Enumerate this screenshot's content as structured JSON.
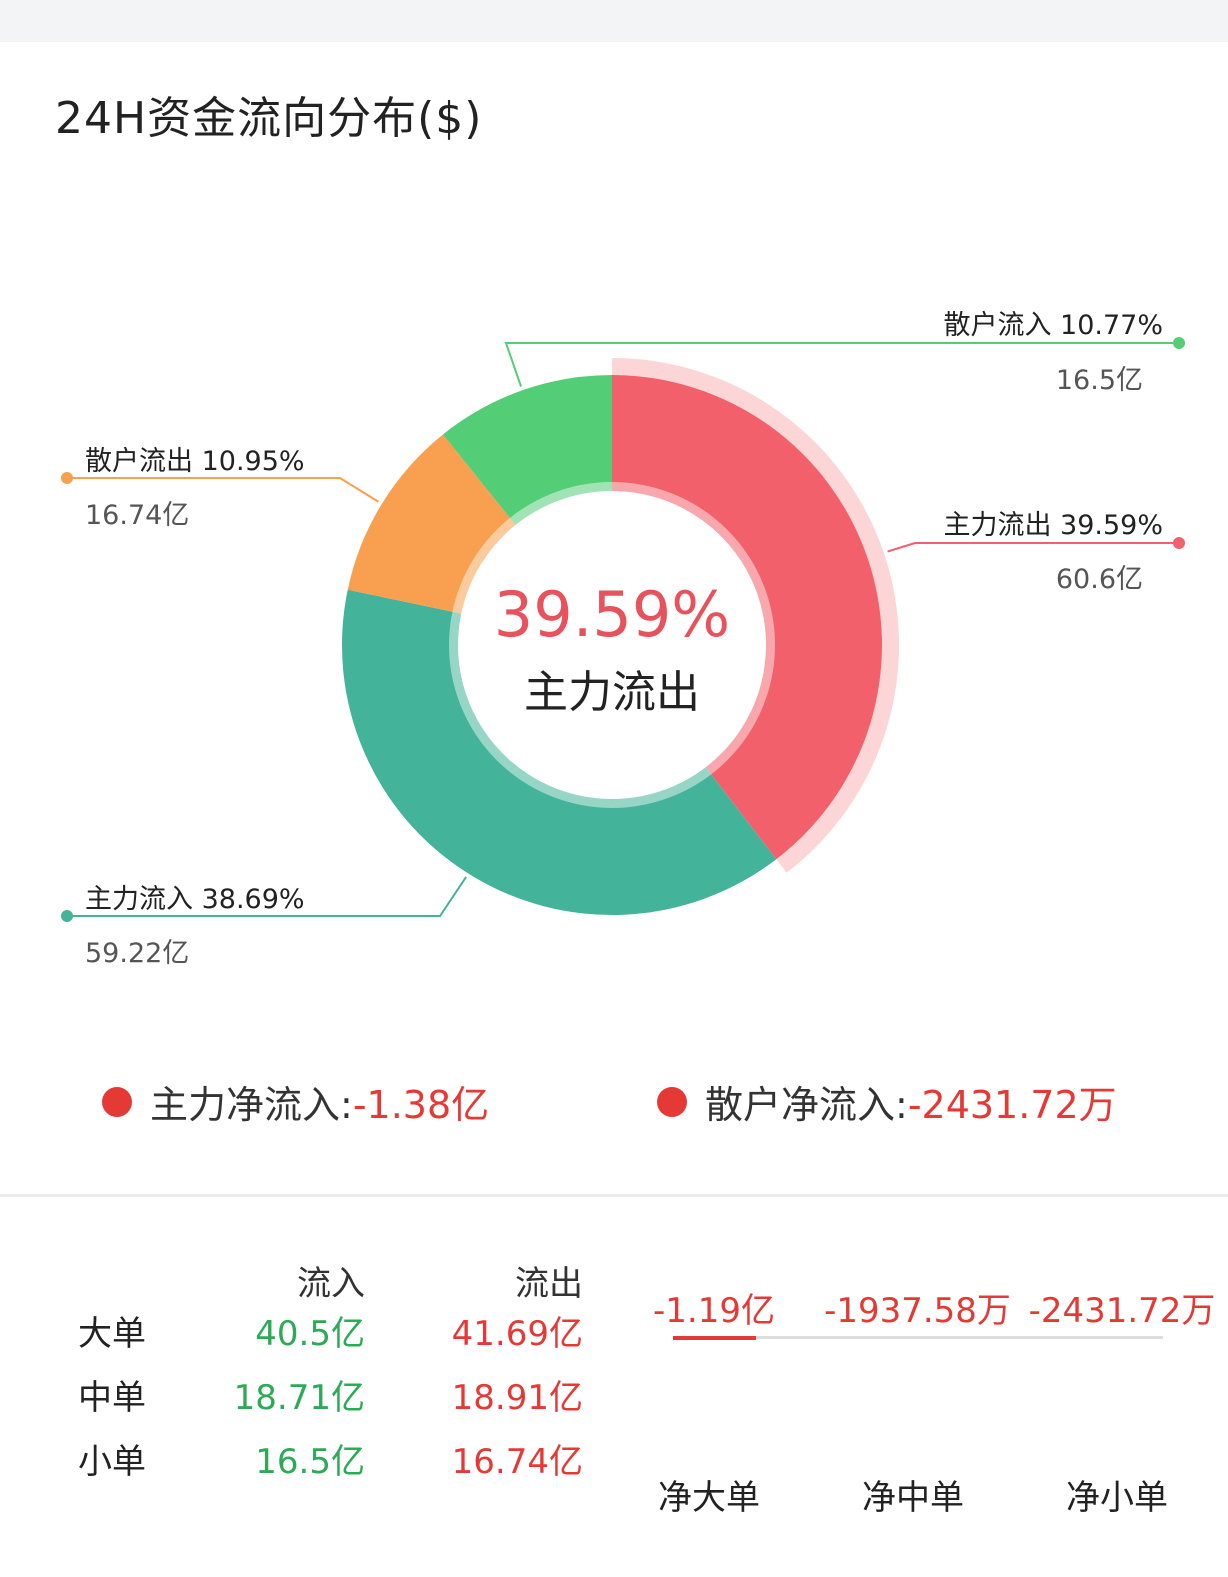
{
  "title": "24H资金流向分布($)",
  "chart_data": {
    "type": "pie",
    "title": "24H资金流向分布($)",
    "slices": [
      {
        "label": "主力流出",
        "percent": 39.59,
        "amount": "60.6亿",
        "percent_text": "主力流出 39.59%",
        "color": "#f2616b"
      },
      {
        "label": "主力流入",
        "percent": 38.69,
        "amount": "59.22亿",
        "percent_text": "主力流入 38.69%",
        "color": "#43b39a"
      },
      {
        "label": "散户流出",
        "percent": 10.95,
        "amount": "16.74亿",
        "percent_text": "散户流出 10.95%",
        "color": "#f8a04f"
      },
      {
        "label": "散户流入",
        "percent": 10.77,
        "amount": "16.5亿",
        "percent_text": "散户流入 10.77%",
        "color": "#54cd77"
      }
    ],
    "highlight": {
      "value": "39.59%",
      "label": "主力流出"
    }
  },
  "net": {
    "main": {
      "label": "主力净流入:",
      "value": "-1.38亿"
    },
    "retail": {
      "label": "散户净流入:",
      "value": "-2431.72万"
    }
  },
  "table": {
    "headers": {
      "in": "流入",
      "out": "流出"
    },
    "rows": [
      {
        "label": "大单",
        "in": "40.5亿",
        "out": "41.69亿"
      },
      {
        "label": "中单",
        "in": "18.71亿",
        "out": "18.91亿"
      },
      {
        "label": "小单",
        "in": "16.5亿",
        "out": "16.74亿"
      }
    ]
  },
  "net_bars": {
    "values": [
      "-1.19亿",
      "-1937.58万",
      "-2431.72万"
    ],
    "labels": [
      "净大单",
      "净中单",
      "净小单"
    ],
    "fill_fraction": 0.17
  },
  "colors": {
    "red": "#e53935",
    "green": "#2daa56",
    "main_out": "#f2616b",
    "main_in": "#43b39a",
    "retail_out": "#f8a04f",
    "retail_in": "#54cd77"
  }
}
